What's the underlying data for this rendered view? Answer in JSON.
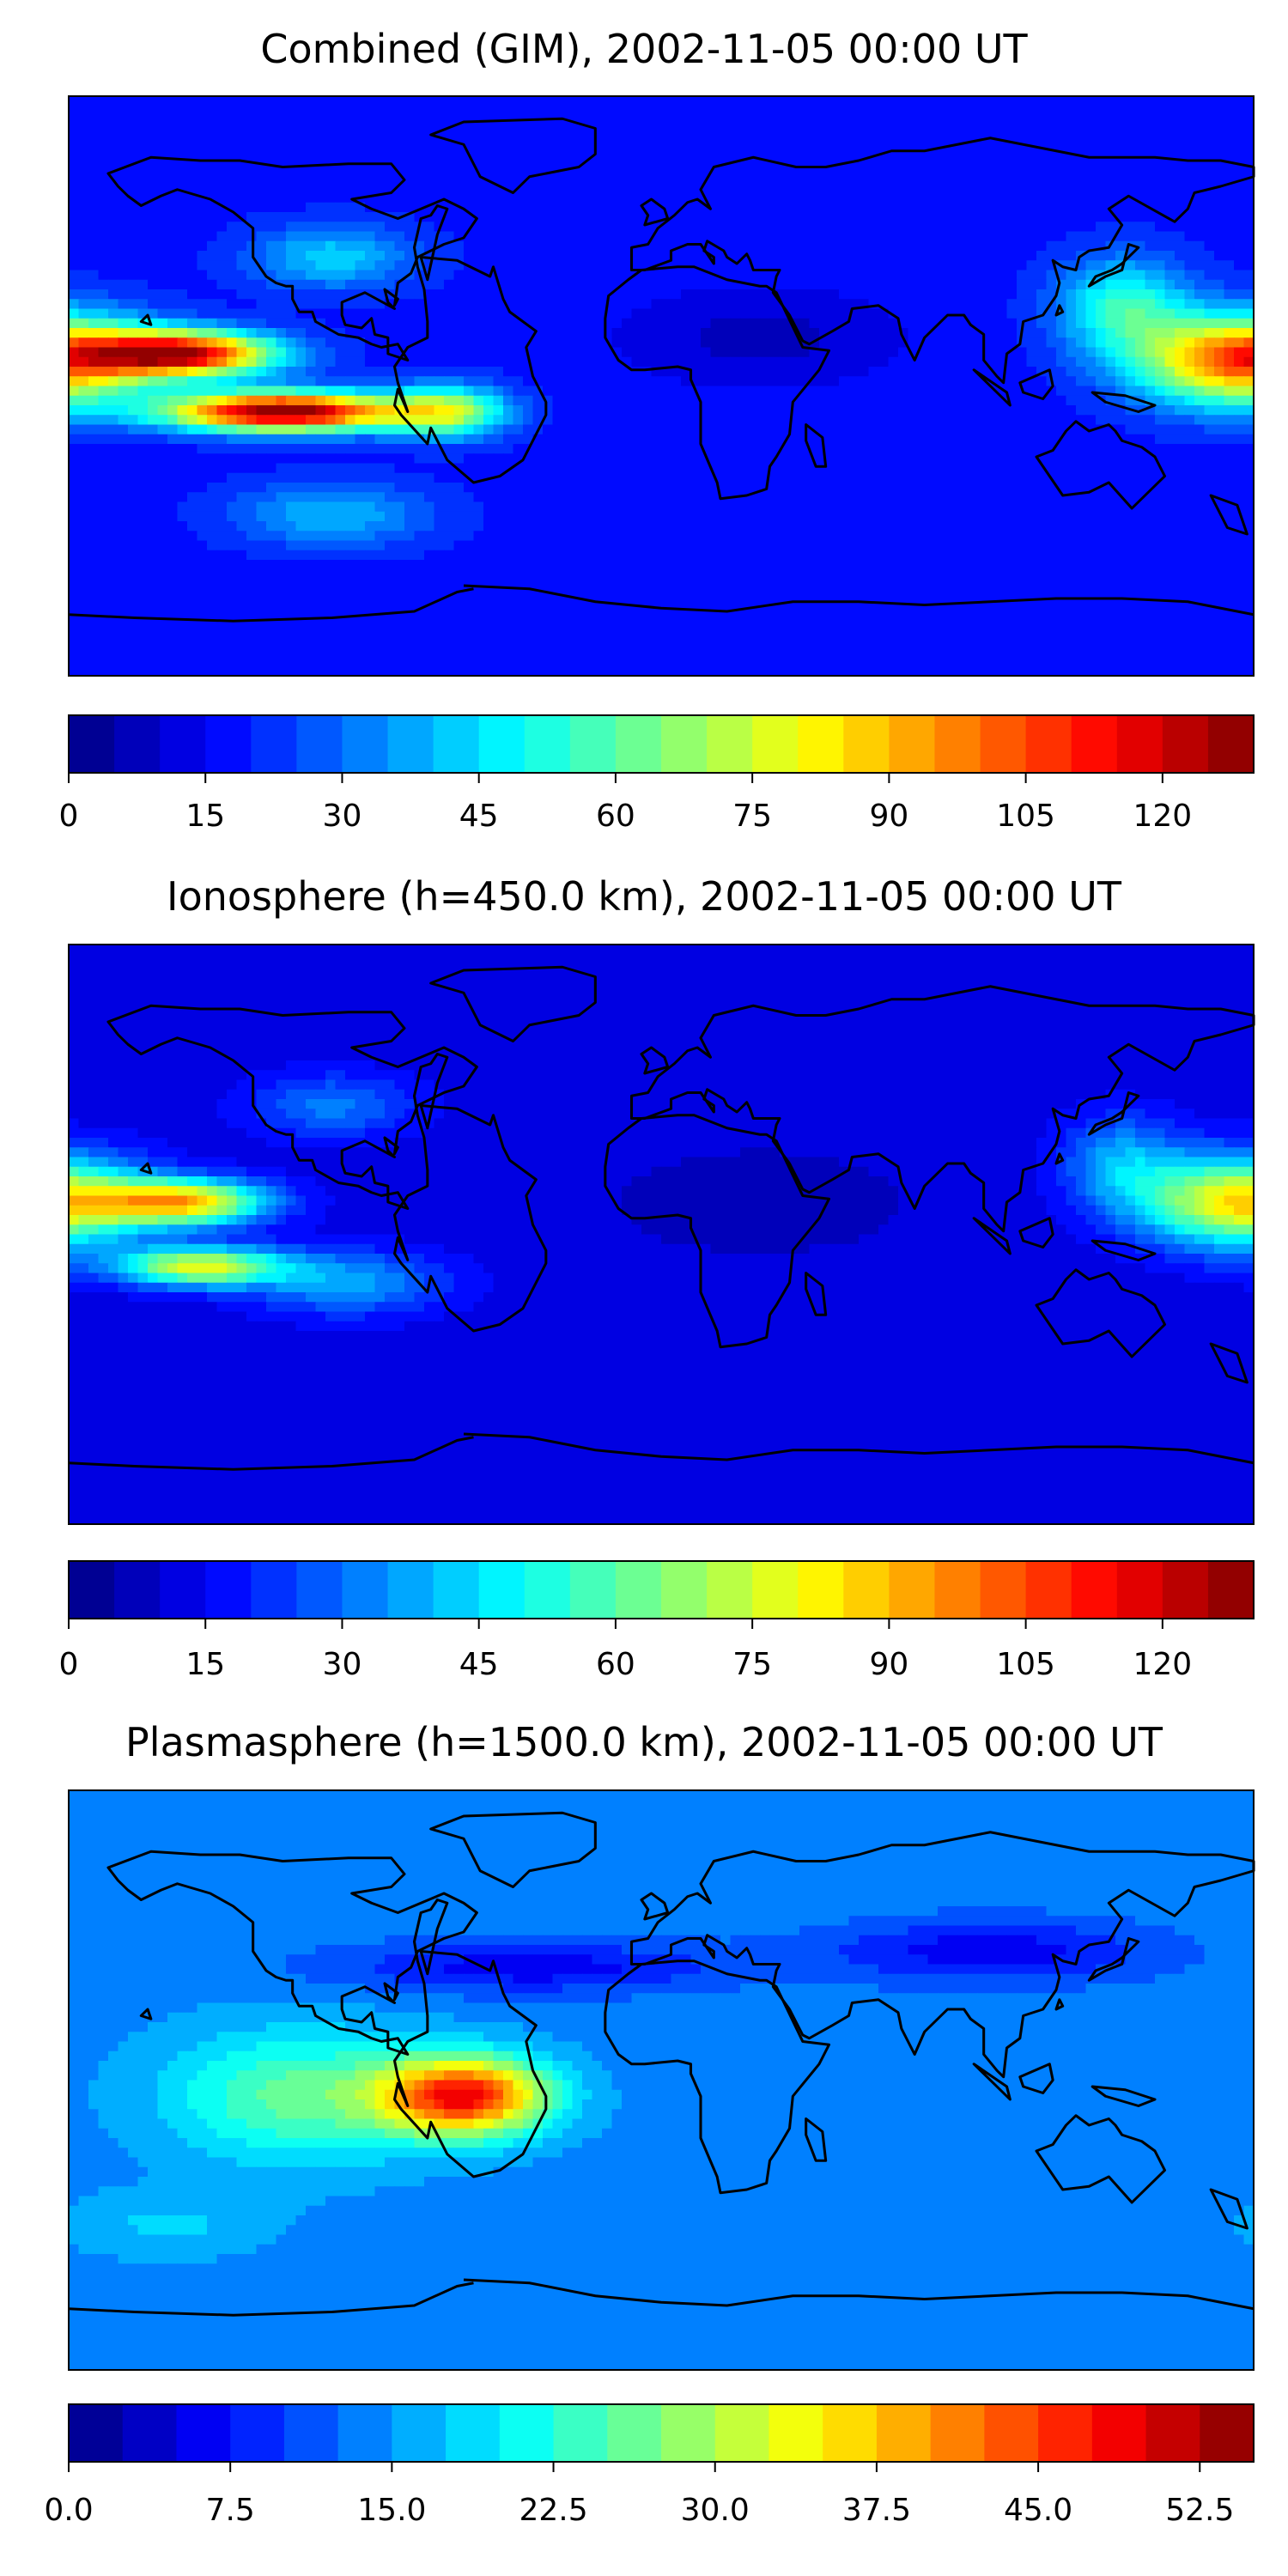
{
  "chart_data": [
    {
      "type": "heatmap",
      "title": "Combined (GIM), 2002-11-05 00:00 UT",
      "colormap": "jet",
      "colorbar": {
        "ticks": [
          "0",
          "15",
          "30",
          "45",
          "60",
          "75",
          "90",
          "105",
          "120"
        ],
        "range": [
          0,
          130
        ],
        "step": 5
      },
      "field": {
        "base": 18,
        "blobs": [
          {
            "lon": -145,
            "lat": 10,
            "amp": 100,
            "slon": 28,
            "slat": 7
          },
          {
            "lon": -115,
            "lat": -8,
            "amp": 115,
            "slon": 35,
            "slat": 6
          },
          {
            "lon": -65,
            "lat": -8,
            "amp": 50,
            "slon": 18,
            "slat": 8
          },
          {
            "lon": 175,
            "lat": 8,
            "amp": 82,
            "slon": 30,
            "slat": 14
          },
          {
            "lon": 140,
            "lat": 25,
            "amp": 35,
            "slon": 20,
            "slat": 15
          },
          {
            "lon": -100,
            "lat": 40,
            "amp": 25,
            "slon": 25,
            "slat": 10
          },
          {
            "lon": -100,
            "lat": -40,
            "amp": 22,
            "slon": 30,
            "slat": 10
          },
          {
            "lon": 30,
            "lat": 15,
            "amp": -10,
            "slon": 40,
            "slat": 15
          }
        ]
      }
    },
    {
      "type": "heatmap",
      "title": "Ionosphere  (h=450.0 km), 2002-11-05 00:00 UT",
      "colormap": "jet",
      "colorbar": {
        "ticks": [
          "0",
          "15",
          "30",
          "45",
          "60",
          "75",
          "90",
          "105",
          "120"
        ],
        "range": [
          0,
          130
        ],
        "step": 5
      },
      "field": {
        "base": 12,
        "blobs": [
          {
            "lon": -145,
            "lat": 10,
            "amp": 75,
            "slon": 25,
            "slat": 7
          },
          {
            "lon": -140,
            "lat": -10,
            "amp": 65,
            "slon": 25,
            "slat": 6
          },
          {
            "lon": 175,
            "lat": 10,
            "amp": 70,
            "slon": 28,
            "slat": 14
          },
          {
            "lon": 140,
            "lat": 22,
            "amp": 25,
            "slon": 18,
            "slat": 15
          },
          {
            "lon": -95,
            "lat": -15,
            "amp": 25,
            "slon": 30,
            "slat": 10
          },
          {
            "lon": -100,
            "lat": 40,
            "amp": 20,
            "slon": 25,
            "slat": 10
          },
          {
            "lon": 30,
            "lat": 10,
            "amp": -6,
            "slon": 40,
            "slat": 15
          }
        ]
      }
    },
    {
      "type": "heatmap",
      "title": "Plasmasphere (h=1500.0 km), 2002-11-05 00:00 UT",
      "colormap": "jet",
      "colorbar": {
        "ticks": [
          "0.0",
          "7.5",
          "15.0",
          "22.5",
          "30.0",
          "37.5",
          "45.0",
          "52.5"
        ],
        "range": [
          0,
          55
        ],
        "step": 2.5
      },
      "field": {
        "base": 14,
        "blobs": [
          {
            "lon": -60,
            "lat": -5,
            "amp": 33,
            "slon": 25,
            "slat": 12
          },
          {
            "lon": -110,
            "lat": -5,
            "amp": 12,
            "slon": 40,
            "slat": 20
          },
          {
            "lon": -40,
            "lat": 35,
            "amp": -8,
            "slon": 60,
            "slat": 8
          },
          {
            "lon": 100,
            "lat": 40,
            "amp": -8,
            "slon": 50,
            "slat": 10
          },
          {
            "lon": -150,
            "lat": -45,
            "amp": 4,
            "slon": 30,
            "slat": 10
          }
        ]
      }
    }
  ]
}
